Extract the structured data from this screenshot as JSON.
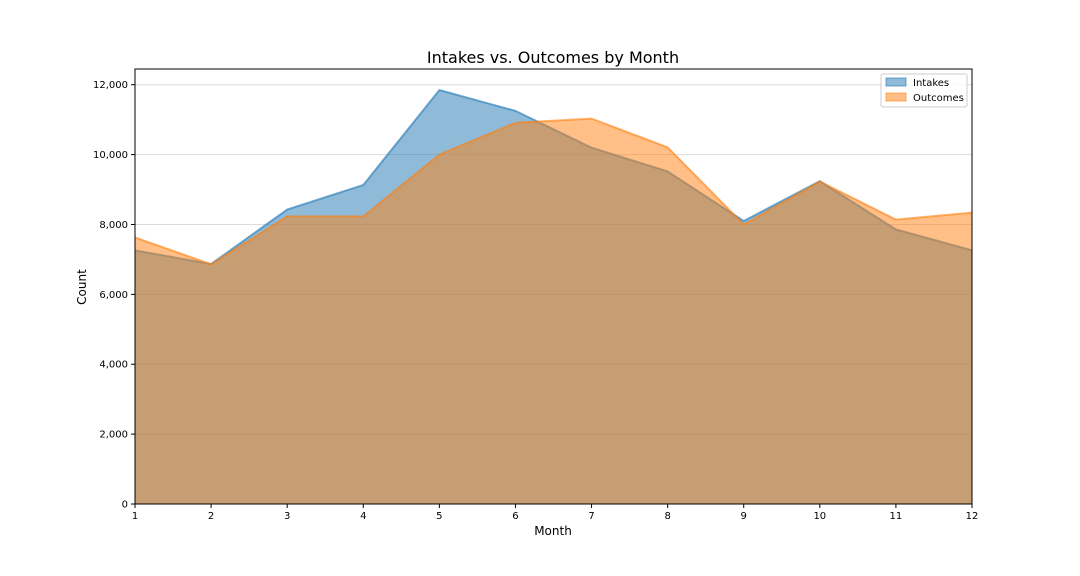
{
  "chart_data": {
    "type": "area",
    "title": "Intakes vs. Outcomes by Month",
    "xlabel": "Month",
    "ylabel": "Count",
    "x": [
      1,
      2,
      3,
      4,
      5,
      6,
      7,
      8,
      9,
      10,
      11,
      12
    ],
    "xticks": [
      "1",
      "2",
      "3",
      "4",
      "5",
      "6",
      "7",
      "8",
      "9",
      "10",
      "11",
      "12"
    ],
    "xlim": [
      1,
      12
    ],
    "ylim": [
      0,
      12450
    ],
    "yticks": [
      0,
      2000,
      4000,
      6000,
      8000,
      10000,
      12000
    ],
    "ytick_labels": [
      "0",
      "2,000",
      "4,000",
      "6,000",
      "8,000",
      "10,000",
      "12,000"
    ],
    "grid": "y",
    "legend_position": "top-right",
    "series": [
      {
        "name": "Intakes",
        "color": "#1f77b4",
        "values": [
          7260,
          6870,
          8430,
          9130,
          11850,
          11250,
          10200,
          9520,
          8100,
          9240,
          7860,
          7260
        ]
      },
      {
        "name": "Outcomes",
        "color": "#ff7f0e",
        "values": [
          7630,
          6860,
          8230,
          8230,
          10000,
          10910,
          11030,
          10210,
          8000,
          9230,
          8140,
          8340
        ]
      }
    ]
  }
}
